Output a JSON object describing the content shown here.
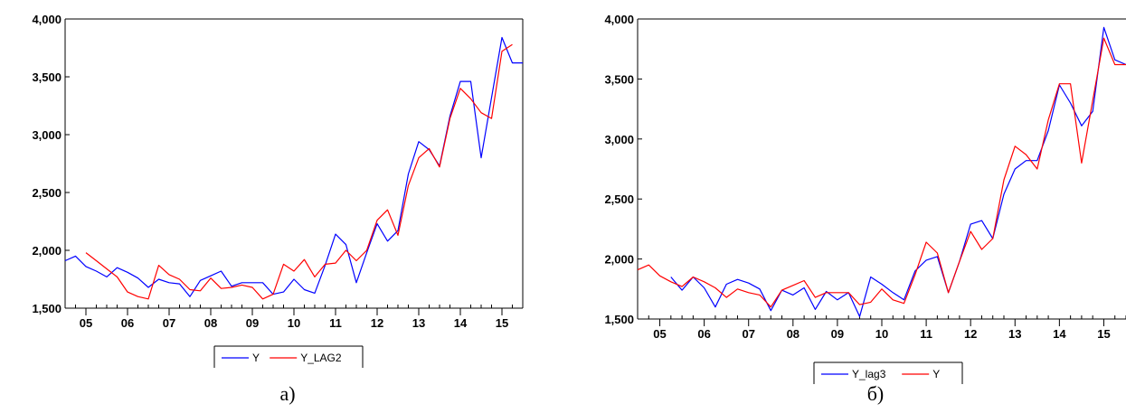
{
  "chart_data": [
    {
      "type": "line",
      "caption": "а)",
      "ylim": [
        1500,
        4000
      ],
      "yticks": [
        1500,
        2000,
        2500,
        3000,
        3500,
        4000
      ],
      "ytick_labels": [
        "1,500",
        "2,000",
        "2,500",
        "3,000",
        "3,500",
        "4,000"
      ],
      "xlim": [
        2004.5,
        2015.5
      ],
      "categories": [
        "05",
        "06",
        "07",
        "08",
        "09",
        "10",
        "11",
        "12",
        "13",
        "14",
        "15"
      ],
      "legend_position": "bottom-center",
      "series": [
        {
          "name": "Y",
          "color": "#0000ff",
          "x": [
            2004.5,
            2004.75,
            2005.0,
            2005.25,
            2005.5,
            2005.75,
            2006.0,
            2006.25,
            2006.5,
            2006.75,
            2007.0,
            2007.25,
            2007.5,
            2007.75,
            2008.0,
            2008.25,
            2008.5,
            2008.75,
            2009.0,
            2009.25,
            2009.5,
            2009.75,
            2010.0,
            2010.25,
            2010.5,
            2010.75,
            2011.0,
            2011.25,
            2011.5,
            2011.75,
            2012.0,
            2012.25,
            2012.5,
            2012.75,
            2013.0,
            2013.25,
            2013.5,
            2013.75,
            2014.0,
            2014.25,
            2014.5,
            2014.75,
            2015.0,
            2015.25,
            2015.5
          ],
          "values": [
            1910,
            1950,
            1860,
            1820,
            1770,
            1850,
            1810,
            1760,
            1680,
            1750,
            1720,
            1710,
            1600,
            1740,
            1780,
            1820,
            1690,
            1720,
            1720,
            1720,
            1620,
            1640,
            1750,
            1660,
            1630,
            1870,
            2140,
            2050,
            1720,
            1980,
            2230,
            2080,
            2170,
            2660,
            2940,
            2870,
            2730,
            3160,
            3460,
            3460,
            2800,
            3320,
            3840,
            3620,
            3620
          ]
        },
        {
          "name": "Y_LAG2",
          "color": "#ff0000",
          "x": [
            2005.0,
            2005.25,
            2005.5,
            2005.75,
            2006.0,
            2006.25,
            2006.5,
            2006.75,
            2007.0,
            2007.25,
            2007.5,
            2007.75,
            2008.0,
            2008.25,
            2008.5,
            2008.75,
            2009.0,
            2009.25,
            2009.5,
            2009.75,
            2010.0,
            2010.25,
            2010.5,
            2010.75,
            2011.0,
            2011.25,
            2011.5,
            2011.75,
            2012.0,
            2012.25,
            2012.5,
            2012.75,
            2013.0,
            2013.25,
            2013.5,
            2013.75,
            2014.0,
            2014.25,
            2014.5,
            2014.75,
            2015.0,
            2015.25
          ],
          "values": [
            1980,
            1910,
            1840,
            1770,
            1640,
            1600,
            1580,
            1870,
            1790,
            1750,
            1660,
            1650,
            1760,
            1670,
            1680,
            1700,
            1680,
            1580,
            1620,
            1880,
            1820,
            1920,
            1770,
            1880,
            1890,
            2000,
            1910,
            2000,
            2260,
            2350,
            2130,
            2560,
            2800,
            2880,
            2720,
            3140,
            3400,
            3310,
            3190,
            3140,
            3720,
            3780
          ]
        }
      ]
    },
    {
      "type": "line",
      "caption": "б)",
      "ylim": [
        1500,
        4000
      ],
      "yticks": [
        1500,
        2000,
        2500,
        3000,
        3500,
        4000
      ],
      "ytick_labels": [
        "1,500",
        "2,000",
        "2,500",
        "3,000",
        "3,500",
        "4,000"
      ],
      "xlim": [
        2004.5,
        2015.5
      ],
      "categories": [
        "05",
        "06",
        "07",
        "08",
        "09",
        "10",
        "11",
        "12",
        "13",
        "14",
        "15"
      ],
      "legend_position": "bottom-center",
      "series": [
        {
          "name": "Y_lag3",
          "color": "#0000ff",
          "x": [
            2005.25,
            2005.5,
            2005.75,
            2006.0,
            2006.25,
            2006.5,
            2006.75,
            2007.0,
            2007.25,
            2007.5,
            2007.75,
            2008.0,
            2008.25,
            2008.5,
            2008.75,
            2009.0,
            2009.25,
            2009.5,
            2009.75,
            2010.0,
            2010.25,
            2010.5,
            2010.75,
            2011.0,
            2011.25,
            2011.5,
            2011.75,
            2012.0,
            2012.25,
            2012.5,
            2012.75,
            2013.0,
            2013.25,
            2013.5,
            2013.75,
            2014.0,
            2014.25,
            2014.5,
            2014.75,
            2015.0,
            2015.25,
            2015.5
          ],
          "values": [
            1850,
            1740,
            1850,
            1760,
            1600,
            1790,
            1830,
            1800,
            1750,
            1570,
            1740,
            1700,
            1760,
            1580,
            1730,
            1660,
            1720,
            1520,
            1850,
            1790,
            1720,
            1660,
            1900,
            1990,
            2020,
            1720,
            1980,
            2290,
            2320,
            2170,
            2540,
            2750,
            2820,
            2820,
            3070,
            3450,
            3300,
            3110,
            3230,
            3930,
            3660,
            3620
          ]
        },
        {
          "name": "Y",
          "color": "#ff0000",
          "x": [
            2004.5,
            2004.75,
            2005.0,
            2005.25,
            2005.5,
            2005.75,
            2006.0,
            2006.25,
            2006.5,
            2006.75,
            2007.0,
            2007.25,
            2007.5,
            2007.75,
            2008.0,
            2008.25,
            2008.5,
            2008.75,
            2009.0,
            2009.25,
            2009.5,
            2009.75,
            2010.0,
            2010.25,
            2010.5,
            2010.75,
            2011.0,
            2011.25,
            2011.5,
            2011.75,
            2012.0,
            2012.25,
            2012.5,
            2012.75,
            2013.0,
            2013.25,
            2013.5,
            2013.75,
            2014.0,
            2014.25,
            2014.5,
            2014.75,
            2015.0,
            2015.25,
            2015.5
          ],
          "values": [
            1910,
            1950,
            1860,
            1810,
            1770,
            1850,
            1810,
            1760,
            1680,
            1750,
            1720,
            1700,
            1600,
            1740,
            1780,
            1820,
            1680,
            1720,
            1720,
            1720,
            1620,
            1640,
            1750,
            1660,
            1630,
            1870,
            2140,
            2050,
            1720,
            1980,
            2230,
            2080,
            2170,
            2660,
            2940,
            2870,
            2750,
            3160,
            3460,
            3460,
            2800,
            3320,
            3840,
            3620,
            3620
          ]
        }
      ]
    }
  ]
}
